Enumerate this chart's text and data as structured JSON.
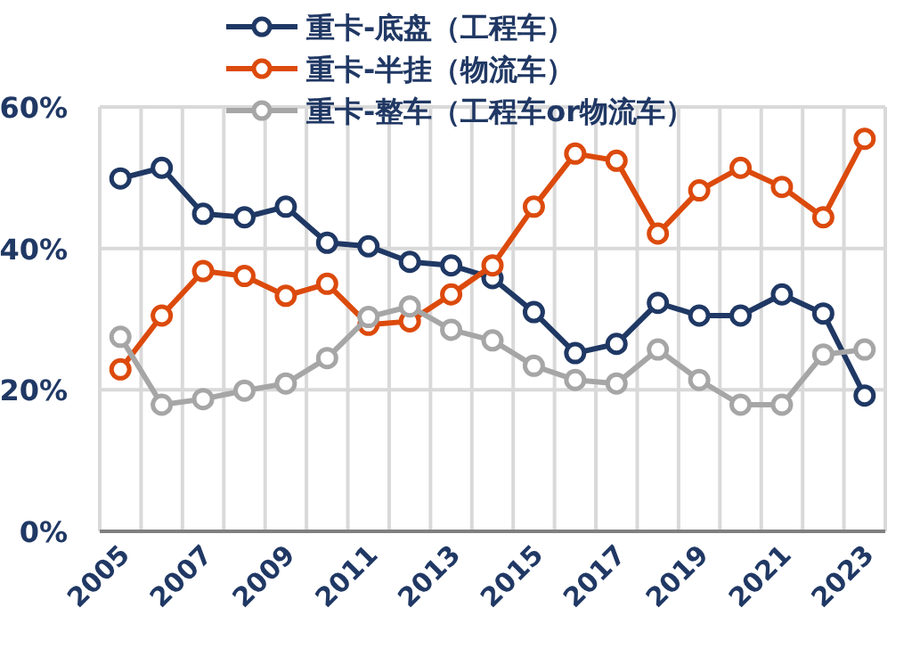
{
  "chart_data": {
    "type": "line",
    "categories": [
      "2005",
      null,
      "2007",
      null,
      "2009",
      null,
      "2011",
      null,
      "2013",
      null,
      "2015",
      null,
      "2017",
      null,
      "2019",
      null,
      "2021",
      null,
      "2023"
    ],
    "series": [
      {
        "name": "重卡-底盘（工程车）",
        "color": "#1f3864",
        "values": [
          49.9,
          51.4,
          44.9,
          44.4,
          45.9,
          40.8,
          40.3,
          38.1,
          37.6,
          35.8,
          31.0,
          25.2,
          26.5,
          32.3,
          30.5,
          30.5,
          33.5,
          30.8,
          19.2
        ]
      },
      {
        "name": "重卡-半挂（物流车）",
        "color": "#dc4a0c",
        "values": [
          22.9,
          30.5,
          36.8,
          36.1,
          33.3,
          35.0,
          29.2,
          29.7,
          33.5,
          37.6,
          45.9,
          53.4,
          52.4,
          42.1,
          48.2,
          51.4,
          48.7,
          44.4,
          55.5
        ]
      },
      {
        "name": "重卡-整车（工程车or物流车）",
        "color": "#a6a6a6",
        "values": [
          27.5,
          17.9,
          18.7,
          19.9,
          20.9,
          24.5,
          30.3,
          31.8,
          28.5,
          27.0,
          23.4,
          21.4,
          20.9,
          25.7,
          21.4,
          17.9,
          17.9,
          25.0,
          25.7
        ]
      }
    ],
    "ylim": [
      0,
      60
    ],
    "yticks": [
      {
        "value": 0,
        "label": "0%"
      },
      {
        "value": 20,
        "label": "20%"
      },
      {
        "value": 40,
        "label": "40%"
      },
      {
        "value": 60,
        "label": "60%"
      }
    ],
    "grid": true,
    "legend": "top",
    "marker": "circle",
    "line_style": "solid"
  }
}
